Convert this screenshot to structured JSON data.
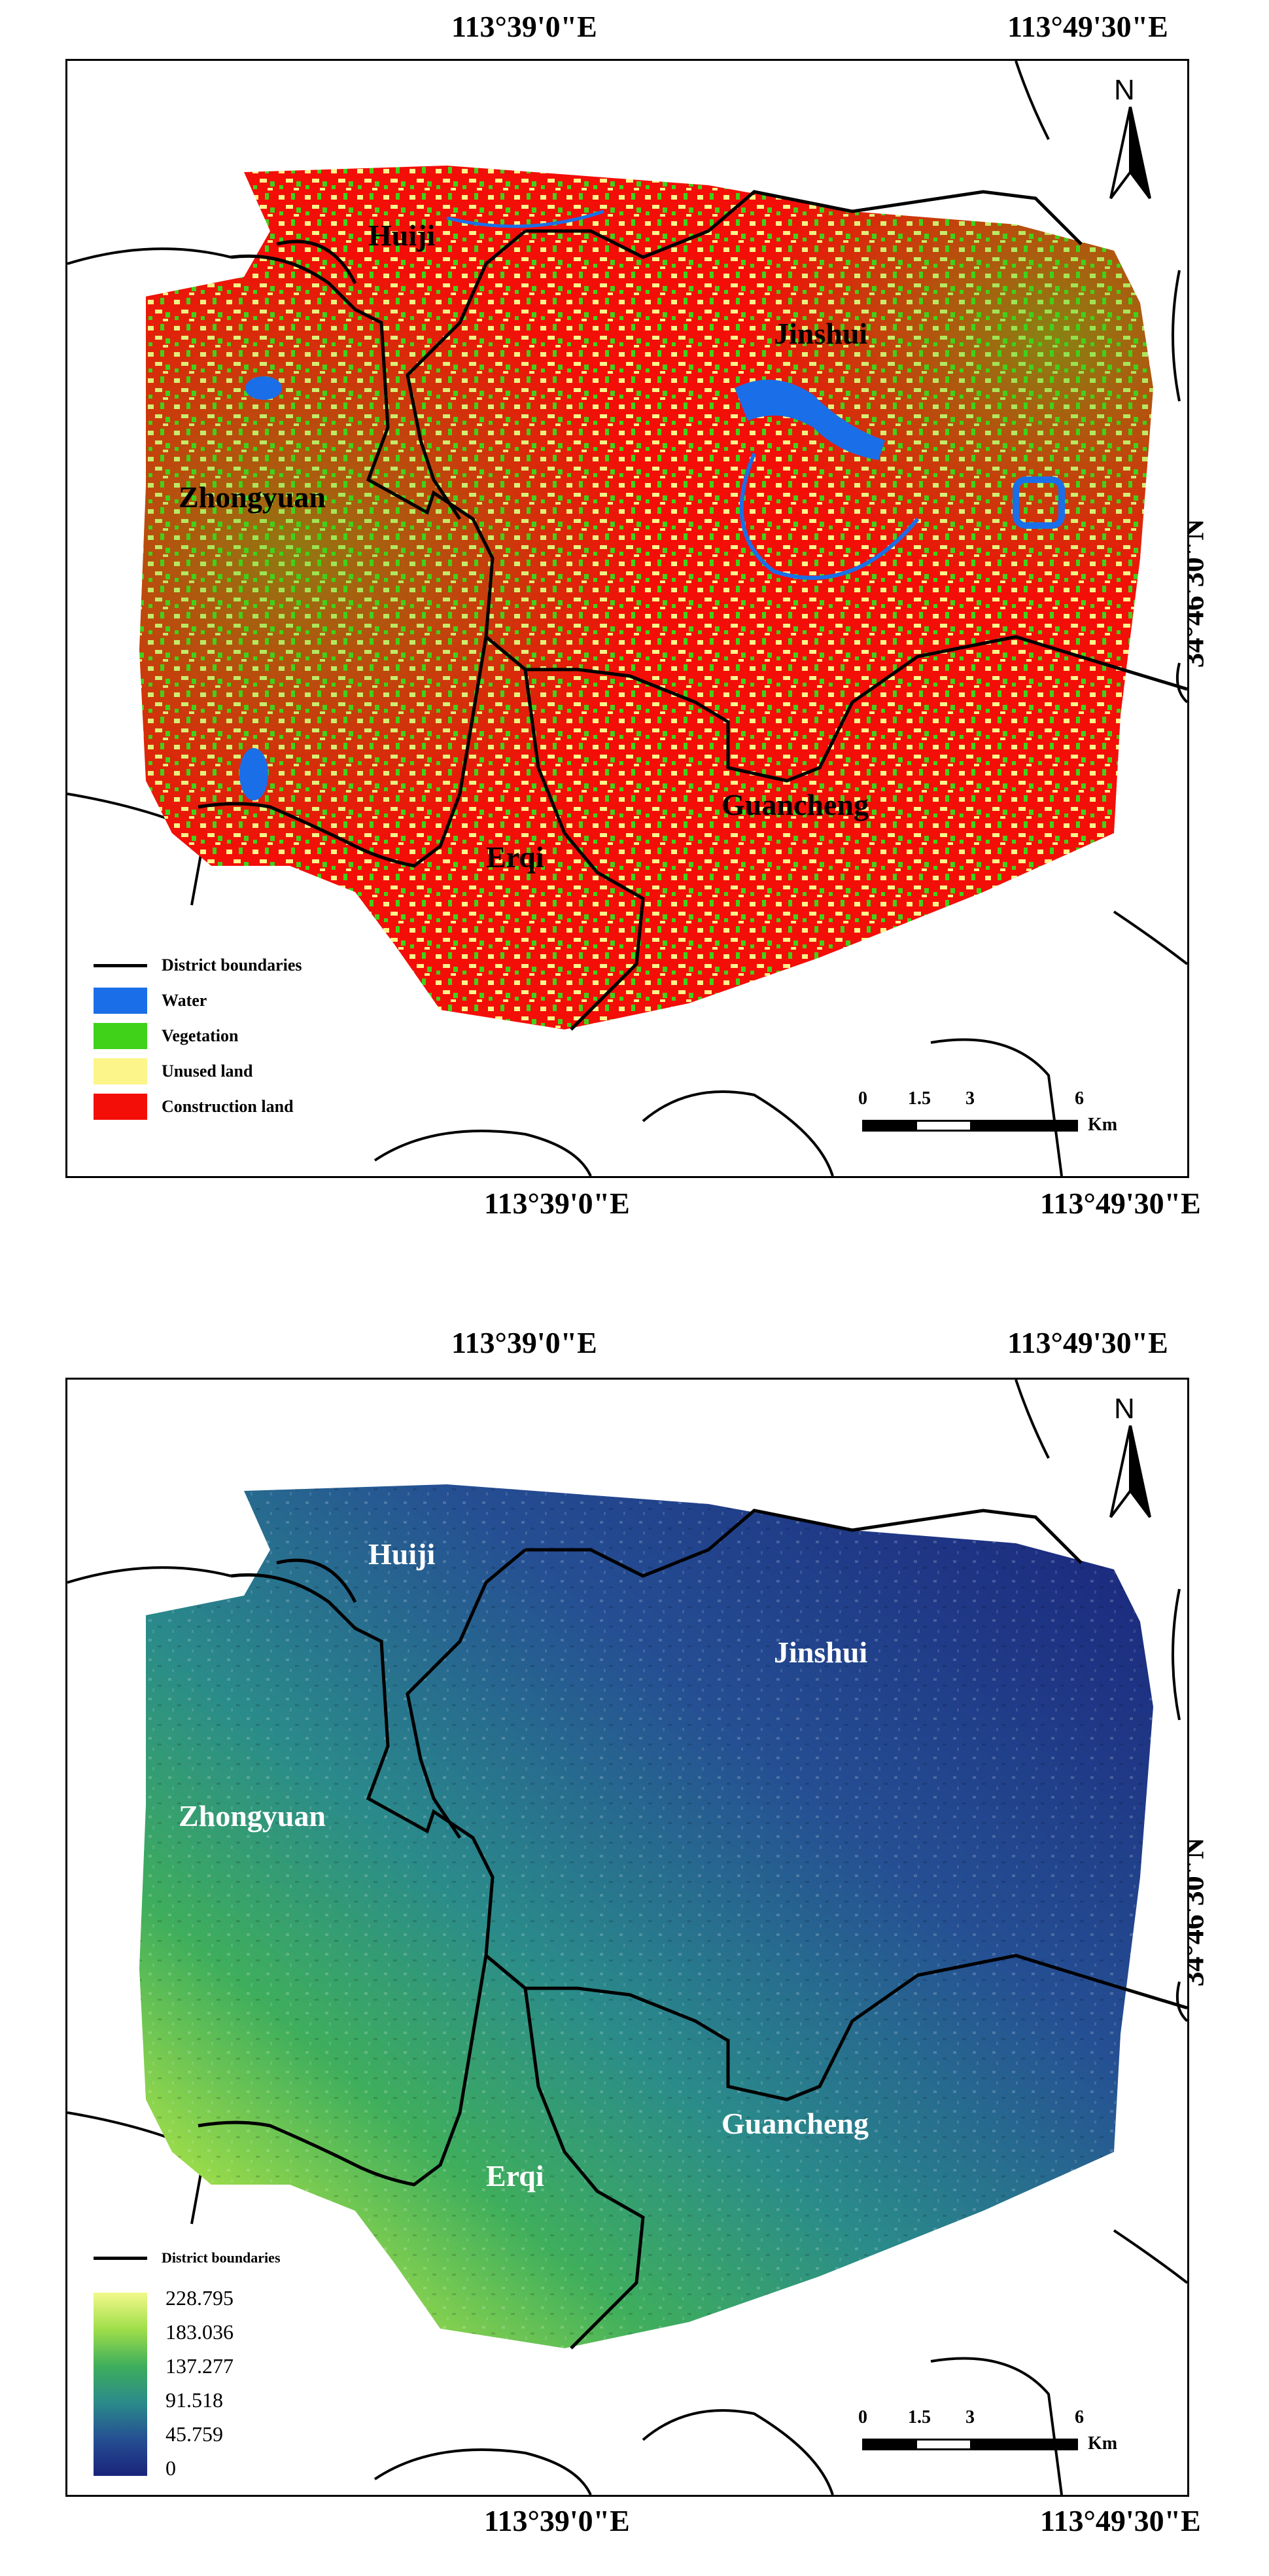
{
  "top_map": {
    "top_coords": [
      "113°39'0\"E",
      "113°49'30\"E"
    ],
    "bottom_coords": [
      "113°39'0\"E",
      "113°49'30\"E"
    ],
    "left_coord": "34°46'30\"N",
    "right_coord": "34°46'30\"N",
    "north_label": "N",
    "districts": [
      "Huiji",
      "Jinshui",
      "Zhongyuan",
      "Erqi",
      "Guancheng"
    ],
    "legend": [
      {
        "label": "District boundaries",
        "kind": "line",
        "color": "#000000"
      },
      {
        "label": "Water",
        "kind": "swatch",
        "color": "#1a6fe8"
      },
      {
        "label": "Vegetation",
        "kind": "swatch",
        "color": "#3fd219"
      },
      {
        "label": "Unused land",
        "kind": "swatch",
        "color": "#fbf58a"
      },
      {
        "label": "Construction land",
        "kind": "swatch",
        "color": "#f30e08"
      }
    ],
    "scale": {
      "ticks": [
        "0",
        "1.5",
        "3",
        "6"
      ],
      "unit": "Km"
    }
  },
  "bottom_map": {
    "top_coords": [
      "113°39'0\"E",
      "113°49'30\"E"
    ],
    "bottom_coords": [
      "113°39'0\"E",
      "113°49'30\"E"
    ],
    "left_coord": "34°46'30\"N",
    "right_coord": "34°46'30\"N",
    "north_label": "N",
    "districts": [
      "Huiji",
      "Jinshui",
      "Zhongyuan",
      "Erqi",
      "Guancheng"
    ],
    "boundary_label": "District boundaries",
    "ramp_values": [
      "228.795",
      "183.036",
      "137.277",
      "91.518",
      "45.759",
      "0"
    ],
    "ramp_colors": [
      "#f2f98a",
      "#9fde4a",
      "#3fae5c",
      "#2a8b8a",
      "#254f93",
      "#1a237a"
    ],
    "scale": {
      "ticks": [
        "0",
        "1.5",
        "3",
        "6"
      ],
      "unit": "Km"
    }
  }
}
